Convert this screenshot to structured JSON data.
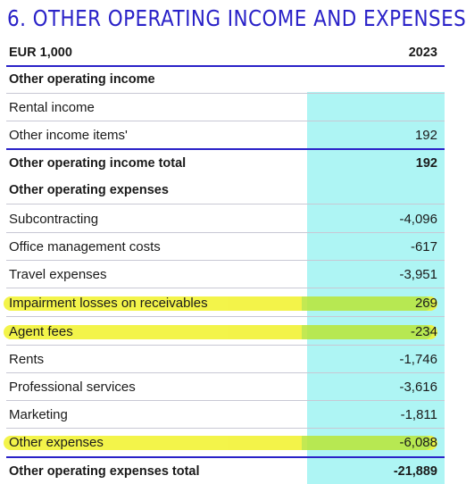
{
  "title": "6. OTHER OPERATING INCOME AND EXPENSES",
  "header": {
    "label": "EUR 1,000",
    "year": "2023"
  },
  "income": {
    "section_label": "Other operating income",
    "rows": [
      {
        "label": "Rental income",
        "value": ""
      },
      {
        "label": "Other income items'",
        "value": "192"
      }
    ],
    "total": {
      "label": "Other operating income total",
      "value": "192"
    }
  },
  "expenses": {
    "section_label": "Other operating expenses",
    "rows": [
      {
        "label": "Subcontracting",
        "value": "-4,096",
        "highlighted": false
      },
      {
        "label": "Office management costs",
        "value": "-617",
        "highlighted": false
      },
      {
        "label": "Travel expenses",
        "value": "-3,951",
        "highlighted": false
      },
      {
        "label": "Impairment losses on receivables",
        "value": "269",
        "highlighted": true
      },
      {
        "label": "Agent fees",
        "value": "-234",
        "highlighted": true
      },
      {
        "label": "Rents",
        "value": "-1,746",
        "highlighted": false
      },
      {
        "label": "Professional services",
        "value": "-3,616",
        "highlighted": false
      },
      {
        "label": "Marketing",
        "value": "-1,811",
        "highlighted": false
      },
      {
        "label": "Other expenses",
        "value": "-6,088",
        "highlighted": true
      }
    ],
    "total": {
      "label": "Other operating expenses total",
      "value": "-21,889"
    }
  },
  "colors": {
    "accent": "#2a22c8",
    "column_highlight": "#aef5f4",
    "marker": "#f1f22a"
  }
}
